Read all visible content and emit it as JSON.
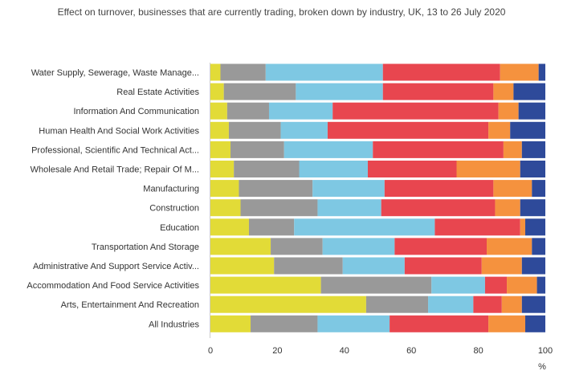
{
  "chart_data": {
    "type": "bar",
    "orientation": "horizontal",
    "stacked": true,
    "title": "Effect on turnover, businesses that are currently trading, broken down by industry, UK, 13 to 26 July 2020",
    "xlabel": "%",
    "xlim": [
      0,
      100
    ],
    "xticks": [
      0,
      20,
      40,
      60,
      80,
      100
    ],
    "grid": false,
    "legend": "none",
    "categories": [
      "Water Supply, Sewerage, Waste Manage...",
      "Real Estate Activities",
      "Information And Communication",
      "Human Health And Social Work Activities",
      "Professional, Scientific And Technical Act...",
      "Wholesale And Retail Trade; Repair Of M...",
      "Manufacturing",
      "Construction",
      "Education",
      "Transportation And Storage",
      "Administrative And Support Service Activ...",
      "Accommodation And Food Service Activities",
      "Arts, Entertainment And Recreation",
      "All Industries"
    ],
    "series": [
      {
        "color": "#e2db37",
        "values": [
          3,
          4,
          5,
          5.5,
          6,
          7,
          8.5,
          9,
          11.5,
          18,
          19,
          33,
          46.5,
          12
        ]
      },
      {
        "color": "#999999",
        "values": [
          13.5,
          21.5,
          12.5,
          15.5,
          16,
          19.5,
          22,
          23,
          13.5,
          15.5,
          20.5,
          33,
          18.5,
          20
        ]
      },
      {
        "color": "#7ec8e3",
        "values": [
          35,
          26,
          19,
          14,
          26.5,
          20.5,
          21.5,
          19,
          42,
          21.5,
          18.5,
          16,
          13.5,
          21.5
        ]
      },
      {
        "color": "#e8464f",
        "values": [
          35,
          33,
          49.5,
          48,
          39,
          26.5,
          32.5,
          34,
          25.5,
          27.5,
          23,
          6.5,
          8.5,
          29.5
        ]
      },
      {
        "color": "#f5923e",
        "values": [
          11.5,
          6,
          6,
          6.5,
          5.5,
          19,
          11.5,
          7.5,
          1.5,
          13.5,
          12,
          9,
          6,
          11
        ]
      },
      {
        "color": "#2e4a9a",
        "values": [
          2,
          9.5,
          8,
          10.5,
          7,
          7.5,
          4,
          7.5,
          6,
          4,
          7,
          2.5,
          7,
          6
        ]
      }
    ]
  }
}
